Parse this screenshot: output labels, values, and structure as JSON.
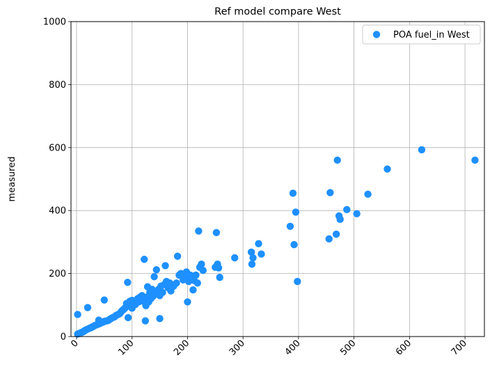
{
  "chart_data": {
    "type": "scatter",
    "title": "Ref model compare West",
    "xlabel": "",
    "ylabel": "measured",
    "xlim": [
      -10,
      735
    ],
    "ylim": [
      0,
      1000
    ],
    "xticks": [
      0,
      100,
      200,
      300,
      400,
      500,
      600,
      700
    ],
    "yticks": [
      0,
      200,
      400,
      600,
      800,
      1000
    ],
    "xtick_labels": [
      "0",
      "100",
      "200",
      "300",
      "400",
      "500",
      "600",
      "700"
    ],
    "ytick_labels": [
      "0",
      "200",
      "400",
      "600",
      "800",
      "1000"
    ],
    "grid": true,
    "legend_position": "top-right",
    "series": [
      {
        "name": "POA fuel_in West",
        "color": "#1e90ff",
        "points": [
          [
            2,
            70
          ],
          [
            2,
            8
          ],
          [
            5,
            10
          ],
          [
            8,
            12
          ],
          [
            10,
            14
          ],
          [
            12,
            15
          ],
          [
            14,
            18
          ],
          [
            16,
            20
          ],
          [
            18,
            22
          ],
          [
            20,
            92
          ],
          [
            22,
            25
          ],
          [
            24,
            27
          ],
          [
            26,
            28
          ],
          [
            28,
            30
          ],
          [
            30,
            32
          ],
          [
            32,
            34
          ],
          [
            34,
            36
          ],
          [
            36,
            37
          ],
          [
            38,
            39
          ],
          [
            40,
            40
          ],
          [
            40,
            52
          ],
          [
            42,
            42
          ],
          [
            44,
            43
          ],
          [
            46,
            45
          ],
          [
            48,
            46
          ],
          [
            50,
            48
          ],
          [
            50,
            116
          ],
          [
            52,
            49
          ],
          [
            55,
            50
          ],
          [
            58,
            52
          ],
          [
            60,
            55
          ],
          [
            62,
            57
          ],
          [
            65,
            60
          ],
          [
            68,
            62
          ],
          [
            70,
            65
          ],
          [
            72,
            68
          ],
          [
            75,
            70
          ],
          [
            78,
            73
          ],
          [
            80,
            78
          ],
          [
            82,
            82
          ],
          [
            84,
            85
          ],
          [
            86,
            88
          ],
          [
            88,
            92
          ],
          [
            90,
            95
          ],
          [
            90,
            105
          ],
          [
            92,
            172
          ],
          [
            93,
            60
          ],
          [
            95,
            98
          ],
          [
            96,
            112
          ],
          [
            98,
            100
          ],
          [
            100,
            90
          ],
          [
            100,
            115
          ],
          [
            102,
            105
          ],
          [
            104,
            108
          ],
          [
            106,
            102
          ],
          [
            108,
            115
          ],
          [
            110,
            120
          ],
          [
            112,
            110
          ],
          [
            114,
            125
          ],
          [
            116,
            118
          ],
          [
            118,
            130
          ],
          [
            120,
            112
          ],
          [
            122,
            245
          ],
          [
            124,
            50
          ],
          [
            125,
            98
          ],
          [
            126,
            125
          ],
          [
            128,
            158
          ],
          [
            130,
            110
          ],
          [
            132,
            140
          ],
          [
            134,
            120
          ],
          [
            136,
            150
          ],
          [
            138,
            128
          ],
          [
            140,
            190
          ],
          [
            142,
            135
          ],
          [
            144,
            212
          ],
          [
            146,
            145
          ],
          [
            148,
            150
          ],
          [
            150,
            57
          ],
          [
            150,
            130
          ],
          [
            152,
            160
          ],
          [
            155,
            140
          ],
          [
            158,
            165
          ],
          [
            160,
            225
          ],
          [
            162,
            175
          ],
          [
            165,
            155
          ],
          [
            168,
            170
          ],
          [
            170,
            145
          ],
          [
            175,
            160
          ],
          [
            180,
            170
          ],
          [
            182,
            255
          ],
          [
            185,
            195
          ],
          [
            188,
            200
          ],
          [
            192,
            180
          ],
          [
            195,
            190
          ],
          [
            198,
            205
          ],
          [
            200,
            110
          ],
          [
            202,
            175
          ],
          [
            205,
            195
          ],
          [
            210,
            148
          ],
          [
            212,
            178
          ],
          [
            215,
            195
          ],
          [
            218,
            170
          ],
          [
            220,
            335
          ],
          [
            222,
            220
          ],
          [
            225,
            230
          ],
          [
            228,
            210
          ],
          [
            250,
            220
          ],
          [
            252,
            330
          ],
          [
            254,
            230
          ],
          [
            256,
            218
          ],
          [
            258,
            188
          ],
          [
            285,
            250
          ],
          [
            315,
            268
          ],
          [
            316,
            230
          ],
          [
            318,
            250
          ],
          [
            328,
            295
          ],
          [
            333,
            262
          ],
          [
            385,
            350
          ],
          [
            390,
            455
          ],
          [
            392,
            292
          ],
          [
            395,
            395
          ],
          [
            398,
            175
          ],
          [
            455,
            310
          ],
          [
            457,
            457
          ],
          [
            468,
            325
          ],
          [
            470,
            560
          ],
          [
            473,
            383
          ],
          [
            475,
            372
          ],
          [
            487,
            403
          ],
          [
            505,
            390
          ],
          [
            525,
            452
          ],
          [
            560,
            532
          ],
          [
            622,
            593
          ],
          [
            718,
            560
          ]
        ]
      }
    ]
  }
}
